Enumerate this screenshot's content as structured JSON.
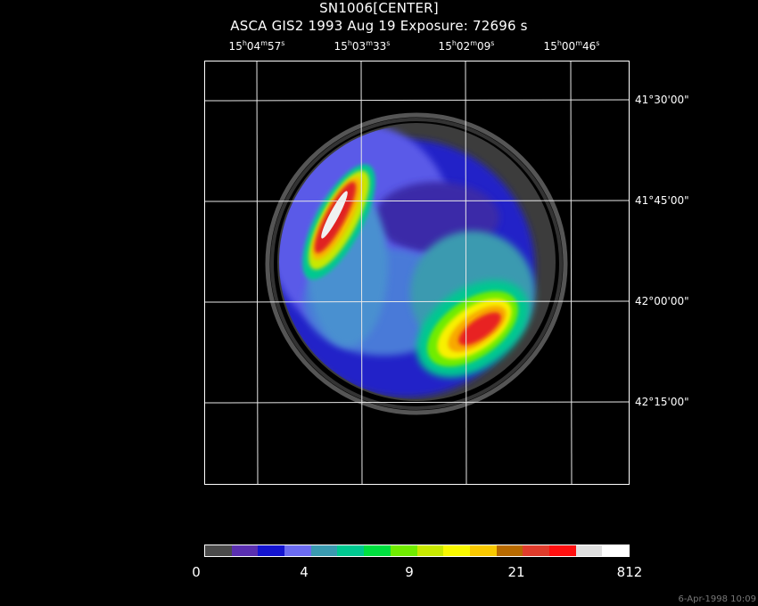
{
  "title": "SN1006[CENTER]",
  "subtitle": "ASCA GIS2    1993 Aug 19    Exposure: 72696 s",
  "ra_ticks": [
    {
      "h": "15",
      "m": "04",
      "s": "57"
    },
    {
      "h": "15",
      "m": "03",
      "s": "33"
    },
    {
      "h": "15",
      "m": "02",
      "s": "09"
    },
    {
      "h": "15",
      "m": "00",
      "s": "46"
    }
  ],
  "dec_ticks": [
    "41°30'00\"",
    "41°45'00\"",
    "42°00'00\"",
    "42°15'00\""
  ],
  "colorbar": {
    "labels": [
      "0",
      "4",
      "9",
      "21",
      "812"
    ],
    "colors": [
      "#4a4a4a",
      "#5a2fb0",
      "#1414d0",
      "#6b6bf0",
      "#3a9ab0",
      "#00c890",
      "#00e040",
      "#70ec00",
      "#c8e800",
      "#f8f800",
      "#f8c800",
      "#b86a00",
      "#e03c2c",
      "#ff1010",
      "#e0e0e0",
      "#ffffff"
    ]
  },
  "timestamp": "6-Apr-1998 10:09"
}
